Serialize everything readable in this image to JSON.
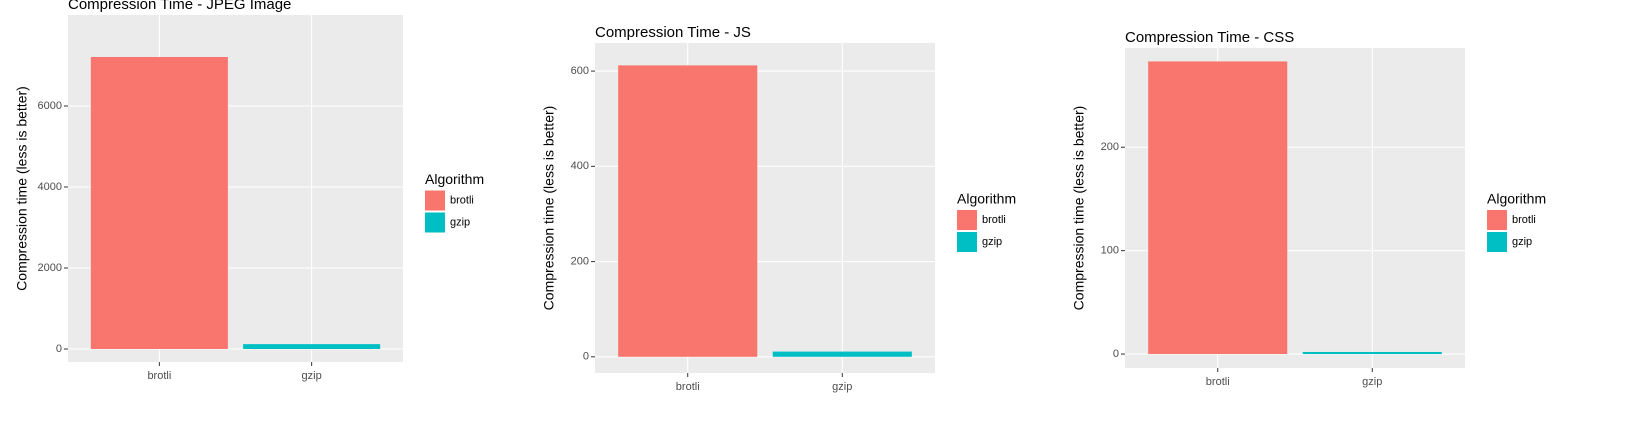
{
  "chart_data": [
    {
      "type": "bar",
      "title": "Compression Time - JPEG Image",
      "y_label": "Compression time (less is better)",
      "categories": [
        "brotli",
        "gzip"
      ],
      "values": [
        7210,
        120
      ],
      "colors": [
        "#f8766d",
        "#00bfc4"
      ],
      "legend_title": "Algorithm",
      "ylim": [
        -321,
        8247
      ],
      "yticks": [
        0,
        2000,
        4000,
        6000
      ],
      "grid": true
    },
    {
      "type": "bar",
      "title": "Compression Time - JS",
      "y_label": "Compression time (less is better)",
      "categories": [
        "brotli",
        "gzip"
      ],
      "values": [
        612,
        11
      ],
      "colors": [
        "#f8766d",
        "#00bfc4"
      ],
      "legend_title": "Algorithm",
      "ylim": [
        -34,
        659
      ],
      "yticks": [
        0,
        200,
        400,
        600
      ],
      "grid": true
    },
    {
      "type": "bar",
      "title": "Compression Time - CSS",
      "y_label": "Compression time (less is better)",
      "categories": [
        "brotli",
        "gzip"
      ],
      "values": [
        283,
        2
      ],
      "colors": [
        "#f8766d",
        "#00bfc4"
      ],
      "legend_title": "Algorithm",
      "ylim": [
        -13.5,
        296
      ],
      "yticks": [
        0,
        100,
        200
      ],
      "grid": true
    }
  ]
}
